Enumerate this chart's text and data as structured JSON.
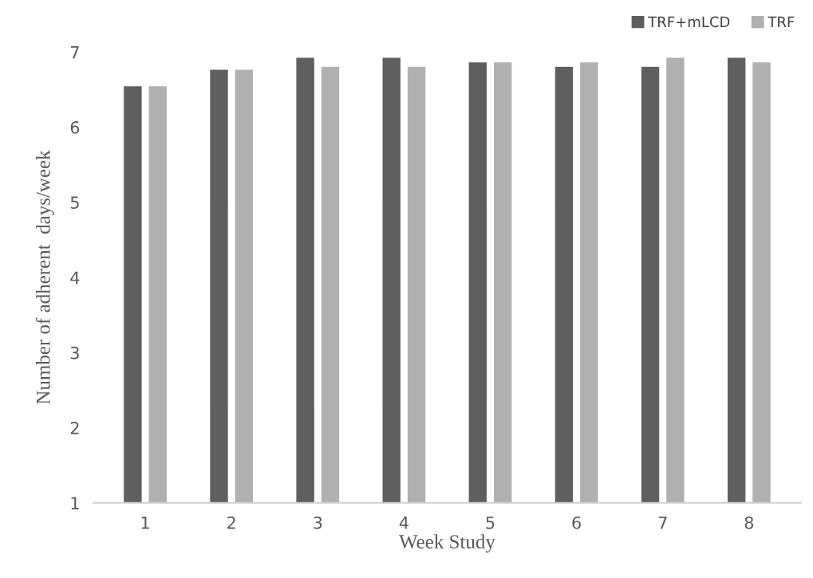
{
  "chart_data": {
    "type": "bar",
    "xlabel": "Week Study",
    "ylabel": "Number of adherent  days/week",
    "categories": [
      "1",
      "2",
      "3",
      "4",
      "5",
      "6",
      "7",
      "8"
    ],
    "series": [
      {
        "name": "TRF+mLCD",
        "color": "#5f5f5f",
        "values": [
          6.55,
          6.77,
          6.93,
          6.93,
          6.87,
          6.81,
          6.81,
          6.93
        ]
      },
      {
        "name": "TRF",
        "color": "#b0b0b0",
        "values": [
          6.55,
          6.77,
          6.81,
          6.81,
          6.87,
          6.87,
          6.93,
          6.87
        ]
      }
    ],
    "ylim": [
      1,
      7
    ],
    "yticks": [
      1,
      2,
      3,
      4,
      5,
      6,
      7
    ],
    "grid": false,
    "legend": "top right"
  }
}
